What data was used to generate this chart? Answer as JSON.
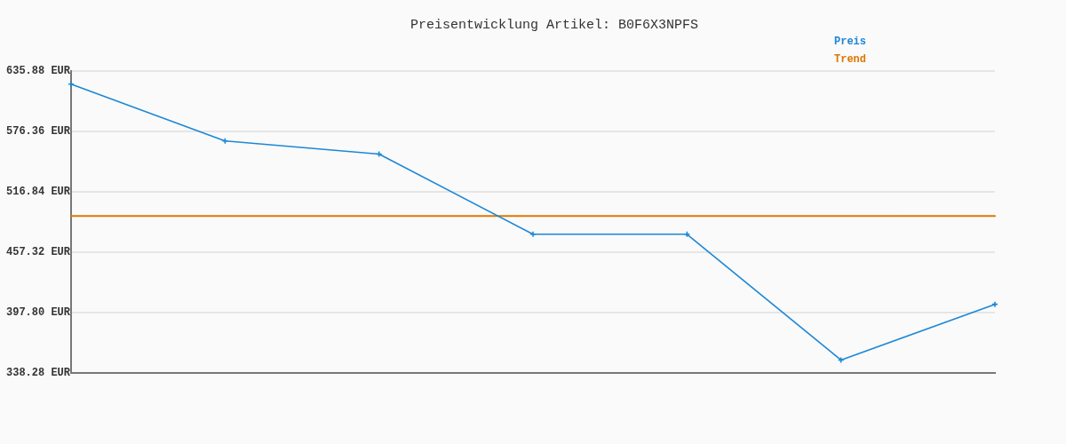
{
  "chart_data": {
    "type": "line",
    "title": "Preisentwicklung Artikel: B0F6X3NPFS",
    "categories": [
      null,
      null,
      null,
      null,
      null,
      null,
      null
    ],
    "series": [
      {
        "name": "Preis",
        "color": "#1d87d6",
        "marker": "cross",
        "values": [
          623,
          567,
          554,
          475,
          475,
          351,
          406
        ]
      },
      {
        "name": "Trend",
        "color": "#dd7700",
        "marker": "none",
        "values": [
          493,
          493,
          493,
          493,
          493,
          493,
          493
        ]
      }
    ],
    "ylim": [
      338.28,
      635.88
    ],
    "yticks": [
      {
        "value": 338.28,
        "label": "338.28 EUR"
      },
      {
        "value": 397.8,
        "label": "397.80 EUR"
      },
      {
        "value": 457.32,
        "label": "457.32 EUR"
      },
      {
        "value": 516.84,
        "label": "516.84 EUR"
      },
      {
        "value": 576.36,
        "label": "576.36 EUR"
      },
      {
        "value": 635.88,
        "label": "635.88 EUR"
      }
    ],
    "grid": "y",
    "legend": "top right",
    "tick_labels": "y"
  }
}
